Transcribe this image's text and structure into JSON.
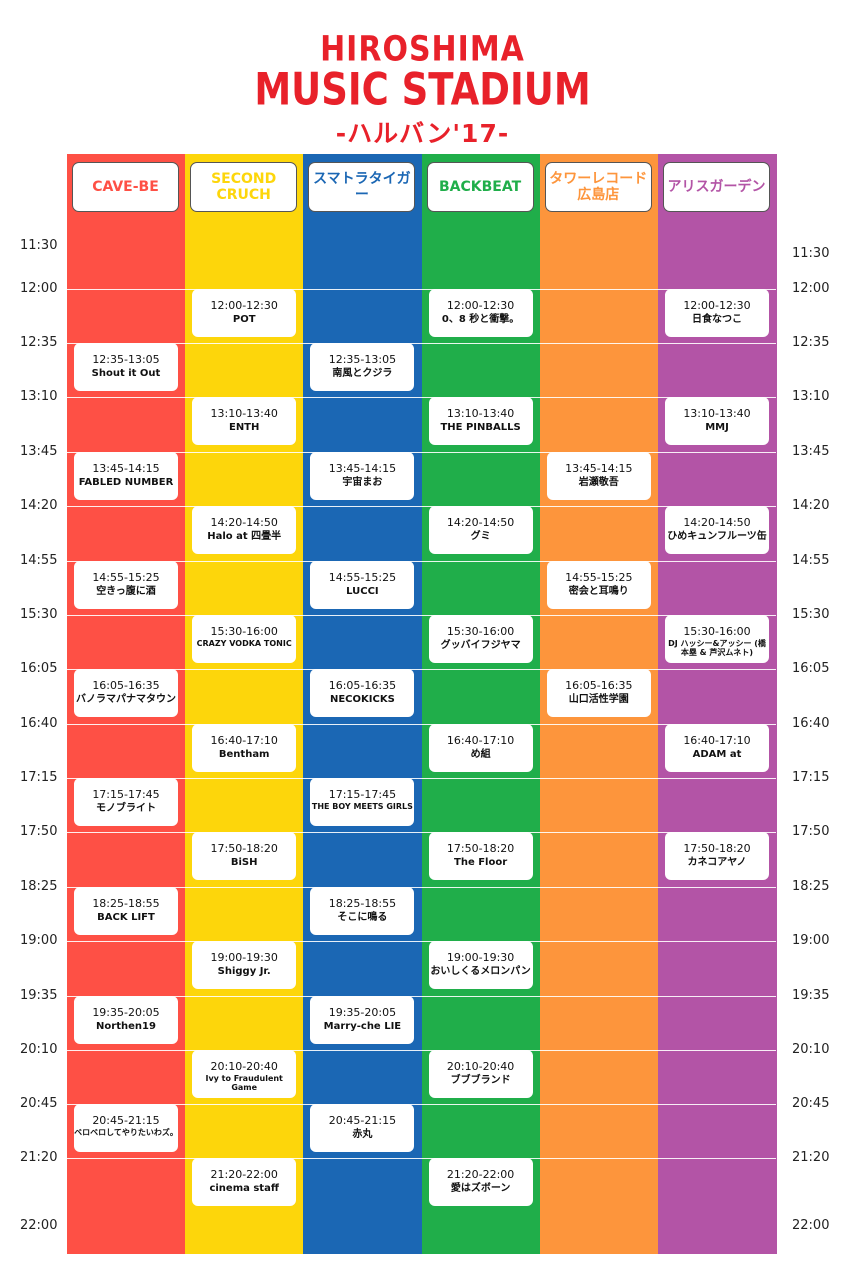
{
  "logo": {
    "line1": "HIROSHIMA",
    "line2": "MUSIC STADIUM",
    "line3": "-ハルバン'17-"
  },
  "colors": [
    "#fe5045",
    "#fdd60b",
    "#1b67b4",
    "#20ae4a",
    "#fd953c",
    "#b354a6"
  ],
  "stages": [
    {
      "id": "cave",
      "name": "CAVE-BE",
      "label_color": "#fe5045"
    },
    {
      "id": "second",
      "name": "SECOND CRUCH",
      "label_color": "#fdd60b"
    },
    {
      "id": "sumatora",
      "name": "スマトラタイガー",
      "label_color": "#1b67b4"
    },
    {
      "id": "backbeat",
      "name": "BACKBEAT",
      "label_color": "#20ae4a"
    },
    {
      "id": "tower",
      "name": "タワーレコード 広島店",
      "label_color": "#fd953c"
    },
    {
      "id": "alice",
      "name": "アリスガーデン",
      "label_color": "#b354a6"
    }
  ],
  "times": [
    "11:30",
    "12:00",
    "12:35",
    "13:10",
    "13:45",
    "14:20",
    "14:55",
    "15:30",
    "16:05",
    "16:40",
    "17:15",
    "17:50",
    "18:25",
    "19:00",
    "19:35",
    "20:10",
    "20:45",
    "21:20",
    "22:00"
  ],
  "slots": [
    {
      "stage": 1,
      "time": "12:00-12:30",
      "name": "POT"
    },
    {
      "stage": 3,
      "time": "12:00-12:30",
      "name": "0、8 秒と衝撃。"
    },
    {
      "stage": 5,
      "time": "12:00-12:30",
      "name": "日食なつこ"
    },
    {
      "stage": 0,
      "time": "12:35-13:05",
      "name": "Shout it Out"
    },
    {
      "stage": 2,
      "time": "12:35-13:05",
      "name": "南風とクジラ"
    },
    {
      "stage": 1,
      "time": "13:10-13:40",
      "name": "ENTH"
    },
    {
      "stage": 3,
      "time": "13:10-13:40",
      "name": "THE PINBALLS"
    },
    {
      "stage": 5,
      "time": "13:10-13:40",
      "name": "MMJ"
    },
    {
      "stage": 0,
      "time": "13:45-14:15",
      "name": "FABLED NUMBER"
    },
    {
      "stage": 2,
      "time": "13:45-14:15",
      "name": "宇宙まお"
    },
    {
      "stage": 4,
      "time": "13:45-14:15",
      "name": "岩瀬敬吾"
    },
    {
      "stage": 1,
      "time": "14:20-14:50",
      "name": "Halo at 四畳半"
    },
    {
      "stage": 3,
      "time": "14:20-14:50",
      "name": "グミ"
    },
    {
      "stage": 5,
      "time": "14:20-14:50",
      "name": "ひめキュンフルーツ缶"
    },
    {
      "stage": 0,
      "time": "14:55-15:25",
      "name": "空きっ腹に酒"
    },
    {
      "stage": 2,
      "time": "14:55-15:25",
      "name": "LUCCI"
    },
    {
      "stage": 4,
      "time": "14:55-15:25",
      "name": "密会と耳鳴り"
    },
    {
      "stage": 1,
      "time": "15:30-16:00",
      "name": "CRAZY VODKA TONIC",
      "small": true
    },
    {
      "stage": 3,
      "time": "15:30-16:00",
      "name": "グッバイフジヤマ"
    },
    {
      "stage": 5,
      "time": "15:30-16:00",
      "name": "DJ ハッシー&アッシー (橋本塁 & 芦沢ムネト)",
      "small": true
    },
    {
      "stage": 0,
      "time": "16:05-16:35",
      "name": "バノラマパナマタウン"
    },
    {
      "stage": 2,
      "time": "16:05-16:35",
      "name": "NECOKICKS"
    },
    {
      "stage": 4,
      "time": "16:05-16:35",
      "name": "山口活性学園"
    },
    {
      "stage": 1,
      "time": "16:40-17:10",
      "name": "Bentham"
    },
    {
      "stage": 3,
      "time": "16:40-17:10",
      "name": "め組"
    },
    {
      "stage": 5,
      "time": "16:40-17:10",
      "name": "ADAM at"
    },
    {
      "stage": 0,
      "time": "17:15-17:45",
      "name": "モノブライト"
    },
    {
      "stage": 2,
      "time": "17:15-17:45",
      "name": "THE BOY MEETS GIRLS",
      "small": true
    },
    {
      "stage": 1,
      "time": "17:50-18:20",
      "name": "BiSH"
    },
    {
      "stage": 3,
      "time": "17:50-18:20",
      "name": "The Floor"
    },
    {
      "stage": 5,
      "time": "17:50-18:20",
      "name": "カネコアヤノ"
    },
    {
      "stage": 0,
      "time": "18:25-18:55",
      "name": "BACK LIFT"
    },
    {
      "stage": 2,
      "time": "18:25-18:55",
      "name": "そこに鳴る"
    },
    {
      "stage": 1,
      "time": "19:00-19:30",
      "name": "Shiggy Jr."
    },
    {
      "stage": 3,
      "time": "19:00-19:30",
      "name": "おいしくるメロンパン"
    },
    {
      "stage": 0,
      "time": "19:35-20:05",
      "name": "Northen19"
    },
    {
      "stage": 2,
      "time": "19:35-20:05",
      "name": "Marry-che LIE"
    },
    {
      "stage": 1,
      "time": "20:10-20:40",
      "name": "Ivy to Fraudulent Game",
      "small": true
    },
    {
      "stage": 3,
      "time": "20:10-20:40",
      "name": "ブブブランド"
    },
    {
      "stage": 0,
      "time": "20:45-21:15",
      "name": "ベロベロしてやりたいわズ。",
      "small": true
    },
    {
      "stage": 2,
      "time": "20:45-21:15",
      "name": "赤丸"
    },
    {
      "stage": 1,
      "time": "21:20-22:00",
      "name": "cinema staff"
    },
    {
      "stage": 3,
      "time": "21:20-22:00",
      "name": "愛はズボーン"
    }
  ]
}
